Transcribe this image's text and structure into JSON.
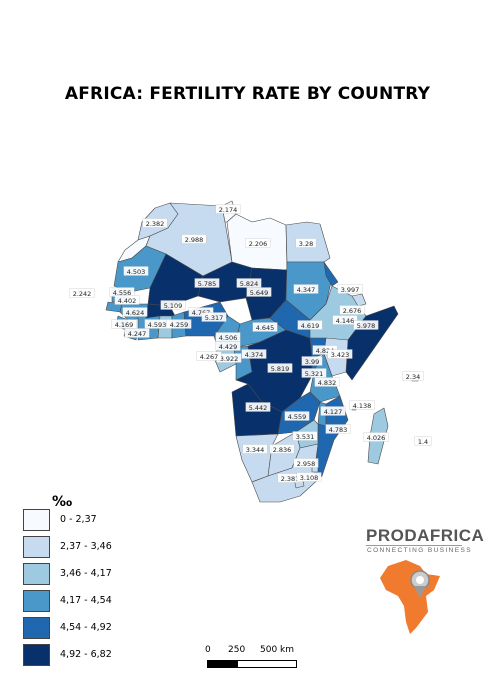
{
  "title": "AFRICA: FERTILITY RATE BY COUNTRY",
  "legend": {
    "title": "‰",
    "classes": [
      {
        "label": "0 - 2,37",
        "color": "#f7fbff"
      },
      {
        "label": "2,37 - 3,46",
        "color": "#c6dbef"
      },
      {
        "label": "3,46 - 4,17",
        "color": "#9ecae1"
      },
      {
        "label": "4,17 - 4,54",
        "color": "#4a98c9"
      },
      {
        "label": "4,54 - 4,92",
        "color": "#1f68b0"
      },
      {
        "label": "4,92 - 6,82",
        "color": "#08306b"
      }
    ]
  },
  "scale": {
    "labels": [
      "0",
      "250",
      "500 km"
    ]
  },
  "branding": {
    "name": "PRODAFRICA",
    "tagline": "CONNECTING BUSINESS",
    "accent_color": "#f07a2e"
  },
  "map_labels": [
    "2.382",
    "2.174",
    "2.988",
    "2.206",
    "3.28",
    "4.503",
    "5.785",
    "5.824",
    "5.649",
    "4.347",
    "3.997",
    "2.242",
    "4.556",
    "4.402",
    "5.109",
    "4.767",
    "5.317",
    "2.676",
    "4.146",
    "5.978",
    "4.169",
    "4.624",
    "4.593",
    "4.259",
    "4.247",
    "4.645",
    "4.619",
    "4.506",
    "4.429",
    "3.922",
    "4.374",
    "4.267",
    "4.824",
    "3.423",
    "5.819",
    "3.99",
    "5.321",
    "4.832",
    "2.34",
    "5.442",
    "4.559",
    "4.127",
    "4.138",
    "3.531",
    "4.783",
    "4.026",
    "1.4",
    "3.344",
    "2.836",
    "2.958",
    "2.381",
    "3.108"
  ]
}
